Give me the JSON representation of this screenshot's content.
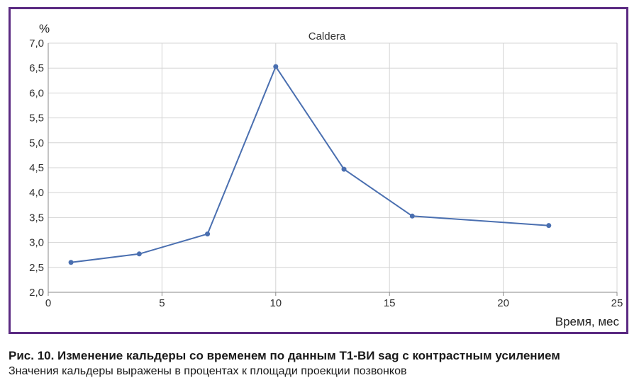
{
  "chart_data": {
    "type": "line",
    "title": "Caldera",
    "xlabel": "Время, мес",
    "ylabel": "%",
    "xlim": [
      0,
      25
    ],
    "ylim": [
      2.0,
      7.0
    ],
    "x_ticks": [
      0,
      5,
      10,
      15,
      20,
      25
    ],
    "x_tick_labels": [
      "0",
      "5",
      "10",
      "15",
      "20",
      "25"
    ],
    "y_ticks": [
      2.0,
      2.5,
      3.0,
      3.5,
      4.0,
      4.5,
      5.0,
      5.5,
      6.0,
      6.5,
      7.0
    ],
    "y_tick_labels": [
      "2,0",
      "2,5",
      "3,0",
      "3,5",
      "4,0",
      "4,5",
      "5,0",
      "5,5",
      "6,0",
      "6,5",
      "7,0"
    ],
    "grid": true,
    "series": [
      {
        "x": [
          1,
          4,
          7,
          10,
          13,
          16,
          22
        ],
        "y": [
          2.6,
          2.77,
          3.17,
          6.53,
          4.47,
          3.53,
          3.34
        ],
        "color": "#4a6fb0"
      }
    ]
  },
  "caption": {
    "title": "Рис. 10. Изменение кальдеры со временем по данным Т1-ВИ sag с контрастным усилением",
    "subtitle": "Значения кальдеры выражены в процентах к площади проекции позвонков"
  }
}
